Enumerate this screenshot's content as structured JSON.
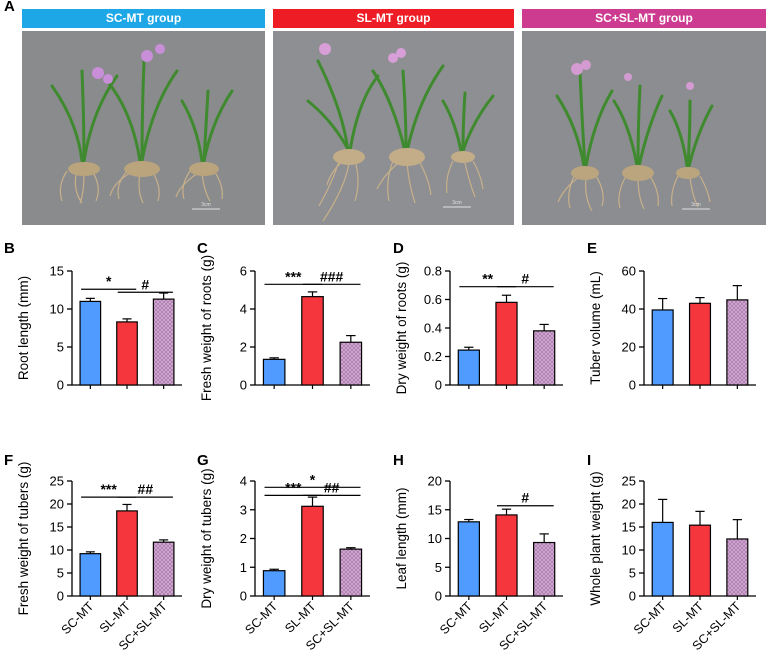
{
  "figure": {
    "panel_letters": [
      "A",
      "B",
      "C",
      "D",
      "E",
      "F",
      "G",
      "H",
      "I"
    ],
    "groups": [
      {
        "label": "SC-MT group",
        "color": "#1ea7e6"
      },
      {
        "label": "SL-MT group",
        "color": "#ee1c24"
      },
      {
        "label": "SC+SL-MT group",
        "color": "#cc3b8f"
      }
    ],
    "scale_bar_label": "3cm"
  },
  "colors": {
    "SC-MT": "#4f9bff",
    "SL-MT": "#f5373d",
    "SC+SL-MT": "#b07ab0"
  },
  "chart_data": [
    {
      "panel": "B",
      "type": "bar",
      "categories": [
        "SC-MT",
        "SL-MT",
        "SC+SL-MT"
      ],
      "values": [
        11.0,
        8.3,
        11.3
      ],
      "errors": [
        0.4,
        0.4,
        0.8
      ],
      "ylabel": "Root length (mm)",
      "ylim": [
        0,
        15
      ],
      "yticks": [
        0,
        5,
        10,
        15
      ],
      "show_xlabels": false,
      "sig": [
        {
          "from": 0,
          "to": 1,
          "label": "*",
          "y": 12.6
        },
        {
          "from": 1,
          "to": 2,
          "label": "#",
          "y": 12.2
        }
      ]
    },
    {
      "panel": "C",
      "type": "bar",
      "categories": [
        "SC-MT",
        "SL-MT",
        "SC+SL-MT"
      ],
      "values": [
        1.35,
        4.65,
        2.25
      ],
      "errors": [
        0.08,
        0.25,
        0.35
      ],
      "ylabel": "Fresh weight of roots (g)",
      "ylim": [
        0,
        6
      ],
      "yticks": [
        0,
        2,
        4,
        6
      ],
      "show_xlabels": false,
      "sig": [
        {
          "from": 0,
          "to": 1,
          "label": "***",
          "y": 5.3
        },
        {
          "from": 1,
          "to": 2,
          "label": "###",
          "y": 5.3
        }
      ]
    },
    {
      "panel": "D",
      "type": "bar",
      "categories": [
        "SC-MT",
        "SL-MT",
        "SC+SL-MT"
      ],
      "values": [
        0.245,
        0.58,
        0.38
      ],
      "errors": [
        0.02,
        0.05,
        0.045
      ],
      "ylabel": "Dry weight of roots (g)",
      "ylim": [
        0,
        0.8
      ],
      "yticks": [
        0,
        0.2,
        0.4,
        0.6,
        0.8
      ],
      "show_xlabels": false,
      "sig": [
        {
          "from": 0,
          "to": 1,
          "label": "**",
          "y": 0.69
        },
        {
          "from": 1,
          "to": 2,
          "label": "#",
          "y": 0.69
        }
      ]
    },
    {
      "panel": "E",
      "type": "bar",
      "categories": [
        "SC-MT",
        "SL-MT",
        "SC+SL-MT"
      ],
      "values": [
        39.5,
        43.0,
        44.8
      ],
      "errors": [
        6.0,
        3.0,
        7.5
      ],
      "ylabel": "Tuber volume (mL)",
      "ylim": [
        0,
        60
      ],
      "yticks": [
        0,
        20,
        40,
        60
      ],
      "show_xlabels": false,
      "sig": []
    },
    {
      "panel": "F",
      "type": "bar",
      "categories": [
        "SC-MT",
        "SL-MT",
        "SC+SL-MT"
      ],
      "values": [
        9.2,
        18.5,
        11.7
      ],
      "errors": [
        0.4,
        1.4,
        0.5
      ],
      "ylabel": "Fresh weight of tubers (g)",
      "ylim": [
        0,
        25
      ],
      "yticks": [
        0,
        5,
        10,
        15,
        20,
        25
      ],
      "show_xlabels": true,
      "sig": [
        {
          "from": 0,
          "to": 1,
          "label": "***",
          "y": 21.5
        },
        {
          "from": 1,
          "to": 2,
          "label": "##",
          "y": 21.5
        }
      ]
    },
    {
      "panel": "G",
      "type": "bar",
      "categories": [
        "SC-MT",
        "SL-MT",
        "SC+SL-MT"
      ],
      "values": [
        0.88,
        3.12,
        1.63
      ],
      "errors": [
        0.05,
        0.32,
        0.05
      ],
      "ylabel": "Dry weight of tubers (g)",
      "ylim": [
        0,
        4
      ],
      "yticks": [
        0,
        1,
        2,
        3,
        4
      ],
      "show_xlabels": true,
      "sig": [
        {
          "from": 0,
          "to": 2,
          "label": "*",
          "y": 3.78
        },
        {
          "from": 0,
          "to": 1,
          "label": "***",
          "y": 3.5
        },
        {
          "from": 1,
          "to": 2,
          "label": "##",
          "y": 3.5
        }
      ]
    },
    {
      "panel": "H",
      "type": "bar",
      "categories": [
        "SC-MT",
        "SL-MT",
        "SC+SL-MT"
      ],
      "values": [
        12.9,
        14.1,
        9.3
      ],
      "errors": [
        0.4,
        1.0,
        1.5
      ],
      "ylabel": "Leaf length (mm)",
      "ylim": [
        0,
        20
      ],
      "yticks": [
        0,
        5,
        10,
        15,
        20
      ],
      "show_xlabels": true,
      "sig": [
        {
          "from": 1,
          "to": 2,
          "label": "#",
          "y": 15.7
        }
      ]
    },
    {
      "panel": "I",
      "type": "bar",
      "categories": [
        "SC-MT",
        "SL-MT",
        "SC+SL-MT"
      ],
      "values": [
        16.0,
        15.4,
        12.4
      ],
      "errors": [
        5.0,
        3.0,
        4.2
      ],
      "ylabel": "Whole plant weight (g)",
      "ylim": [
        0,
        25
      ],
      "yticks": [
        0,
        5,
        10,
        15,
        20,
        25
      ],
      "show_xlabels": true,
      "sig": []
    }
  ]
}
